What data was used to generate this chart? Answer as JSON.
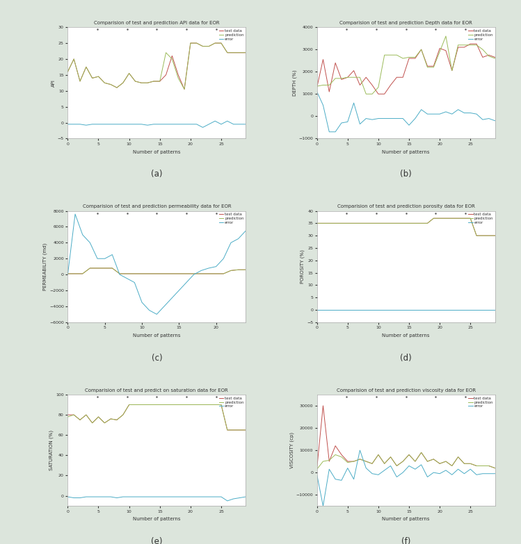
{
  "background_color": "#dce5dc",
  "subplot_bg": "#ffffff",
  "subplot_titles": [
    "Comparision of test and prediction API data for EOR",
    "Comparision of test and prediction Depth data for EOR",
    "Comparision of test and prediction permeability data for EOR",
    "Comparision of test and prediction porosity data for EOR",
    "Comparision of test and predict on saturation data for EOR",
    "Comparision of test and prediction viscosity data for EOR"
  ],
  "subplot_labels": [
    "(a)",
    "(b)",
    "(c)",
    "(d)",
    "(e)",
    "(f)"
  ],
  "ylabels": [
    "API",
    "DEPTH (%)",
    "PERMEABILITY (md)",
    "POROSITY (%)",
    "SATURATION (%)",
    "VISCOSITY (cp)"
  ],
  "xlabel": "Number of patterns",
  "line_colors": {
    "test": "#c0504d",
    "prediction": "#9bbb59",
    "error": "#4bacc6"
  },
  "legend_labels": [
    "test data",
    "prediction",
    "error"
  ],
  "api": {
    "x": [
      0,
      1,
      2,
      3,
      4,
      5,
      6,
      7,
      8,
      9,
      10,
      11,
      12,
      13,
      14,
      15,
      16,
      17,
      18,
      19,
      20,
      21,
      22,
      23,
      24,
      25,
      26,
      27,
      28,
      29
    ],
    "test": [
      16,
      20,
      13,
      17.5,
      14,
      14.5,
      12.5,
      12,
      11,
      12.5,
      15.5,
      13,
      12.5,
      12.5,
      13,
      13,
      15,
      21,
      15,
      10.5,
      25,
      25,
      24,
      24,
      25,
      25,
      22,
      22,
      22,
      22
    ],
    "prediction": [
      16,
      20,
      13,
      17.5,
      14,
      14.5,
      12.5,
      12,
      11,
      12.5,
      15.5,
      13,
      12.5,
      12.5,
      13,
      13,
      22,
      20,
      14,
      10.5,
      25,
      25,
      24,
      24,
      25,
      25,
      22,
      22,
      22,
      22
    ],
    "error": [
      -0.5,
      -0.5,
      -0.5,
      -0.8,
      -0.5,
      -0.5,
      -0.5,
      -0.5,
      -0.5,
      -0.5,
      -0.5,
      -0.5,
      -0.5,
      -0.8,
      -0.5,
      -0.5,
      -0.5,
      -0.5,
      -0.5,
      -0.5,
      -0.5,
      -0.5,
      -1.5,
      -0.5,
      0.5,
      -0.5,
      0.5,
      -0.5,
      -0.5,
      -0.5
    ],
    "ylim": [
      -5,
      30
    ],
    "yticks": [
      -5,
      0,
      5,
      10,
      15,
      20,
      25,
      30
    ]
  },
  "depth": {
    "x": [
      0,
      1,
      2,
      3,
      4,
      5,
      6,
      7,
      8,
      9,
      10,
      11,
      12,
      13,
      14,
      15,
      16,
      17,
      18,
      19,
      20,
      21,
      22,
      23,
      24,
      25,
      26,
      27,
      28,
      29
    ],
    "test": [
      1300,
      2550,
      1100,
      2400,
      1650,
      1750,
      2050,
      1400,
      1750,
      1400,
      1000,
      1000,
      1400,
      1750,
      1750,
      2600,
      2600,
      3000,
      2250,
      2250,
      3050,
      2950,
      2050,
      3100,
      3100,
      3250,
      3250,
      2650,
      2750,
      2650
    ],
    "prediction": [
      1350,
      1400,
      1400,
      1700,
      1700,
      1750,
      1750,
      1750,
      1000,
      1000,
      1300,
      2750,
      2750,
      2750,
      2600,
      2650,
      2650,
      3000,
      2200,
      2200,
      2900,
      3600,
      2050,
      3200,
      3200,
      3200,
      3200,
      3000,
      2700,
      2600
    ],
    "error": [
      1100,
      500,
      -700,
      -700,
      -300,
      -250,
      600,
      -350,
      -100,
      -150,
      -100,
      -100,
      -100,
      -100,
      -100,
      -400,
      -100,
      300,
      100,
      100,
      100,
      200,
      100,
      300,
      150,
      150,
      100,
      -150,
      -100,
      -200
    ],
    "ylim": [
      -1000,
      4000
    ],
    "yticks": [
      -1000,
      -500,
      0,
      500,
      1000,
      1500,
      2000,
      2500,
      3000,
      3500,
      4000
    ]
  },
  "permeability": {
    "x": [
      0,
      1,
      2,
      3,
      4,
      5,
      6,
      7,
      8,
      9,
      10,
      11,
      12,
      13,
      14,
      15,
      16,
      17,
      18,
      19,
      20,
      21,
      22,
      23,
      24
    ],
    "test": [
      100,
      100,
      100,
      800,
      800,
      800,
      800,
      100,
      100,
      100,
      100,
      100,
      100,
      100,
      100,
      100,
      100,
      100,
      100,
      100,
      100,
      100,
      500,
      600,
      600
    ],
    "prediction": [
      100,
      100,
      100,
      800,
      800,
      800,
      800,
      100,
      100,
      100,
      100,
      100,
      100,
      100,
      100,
      100,
      100,
      100,
      100,
      100,
      100,
      100,
      500,
      600,
      600
    ],
    "error": [
      0,
      7600,
      5000,
      4000,
      2000,
      2000,
      2500,
      0,
      -500,
      -1000,
      -3500,
      -4500,
      -5000,
      -4000,
      -3000,
      -2000,
      -1000,
      0,
      500,
      800,
      1000,
      2000,
      4000,
      4500,
      5500
    ],
    "ylim": [
      -6000,
      8000
    ],
    "yticks": [
      -6000,
      -4000,
      -2000,
      0,
      2000,
      4000,
      6000,
      8000
    ]
  },
  "porosity": {
    "x": [
      0,
      1,
      2,
      3,
      4,
      5,
      6,
      7,
      8,
      9,
      10,
      11,
      12,
      13,
      14,
      15,
      16,
      17,
      18,
      19,
      20,
      21,
      22,
      23,
      24,
      25,
      26,
      27,
      28,
      29
    ],
    "test": [
      35,
      35,
      35,
      35,
      35,
      35,
      35,
      35,
      35,
      35,
      35,
      35,
      35,
      35,
      35,
      35,
      35,
      35,
      35,
      37,
      37,
      37,
      37,
      37,
      37,
      37,
      30,
      30,
      30,
      30
    ],
    "prediction": [
      35,
      35,
      35,
      35,
      35,
      35,
      35,
      35,
      35,
      35,
      35,
      35,
      35,
      35,
      35,
      35,
      35,
      35,
      35,
      37,
      37,
      37,
      37,
      37,
      37,
      37,
      30,
      30,
      30,
      30
    ],
    "error": [
      0,
      0,
      0,
      0,
      0,
      0,
      0,
      0,
      0,
      0,
      0,
      0,
      0,
      0,
      0,
      0,
      0,
      0,
      0,
      0,
      0,
      0,
      0,
      0,
      0,
      0,
      0,
      0,
      0,
      0
    ],
    "ylim": [
      -5,
      40
    ],
    "yticks": [
      -5,
      0,
      5,
      10,
      15,
      20,
      25,
      30,
      35,
      40
    ]
  },
  "saturation": {
    "x": [
      0,
      1,
      2,
      3,
      4,
      5,
      6,
      7,
      8,
      9,
      10,
      11,
      12,
      13,
      14,
      15,
      16,
      17,
      18,
      19,
      20,
      21,
      22,
      23,
      24,
      25,
      26,
      27,
      28,
      29
    ],
    "test": [
      80,
      80,
      75,
      80,
      72,
      78,
      72,
      76,
      75,
      80,
      90,
      90,
      90,
      90,
      90,
      90,
      90,
      90,
      90,
      90,
      90,
      90,
      90,
      90,
      90,
      90,
      65,
      65,
      65,
      65
    ],
    "prediction": [
      78,
      80,
      75,
      80,
      72,
      78,
      72,
      76,
      75,
      80,
      90,
      90,
      90,
      90,
      90,
      90,
      90,
      90,
      90,
      90,
      90,
      90,
      90,
      90,
      90,
      90,
      65,
      65,
      65,
      65
    ],
    "error": [
      -1,
      -2,
      -2,
      -1,
      -1,
      -1,
      -1,
      -1,
      -2,
      -1,
      -1,
      -1,
      -1,
      -1,
      -1,
      -1,
      -1,
      -1,
      -1,
      -1,
      -1,
      -1,
      -1,
      -1,
      -1,
      -1,
      -5,
      -3,
      -2,
      -1
    ],
    "ylim": [
      -10,
      100
    ],
    "yticks": [
      -10,
      0,
      10,
      20,
      30,
      40,
      50,
      60,
      70,
      80,
      90,
      100
    ]
  },
  "viscosity": {
    "x": [
      0,
      1,
      2,
      3,
      4,
      5,
      6,
      7,
      8,
      9,
      10,
      11,
      12,
      13,
      14,
      15,
      16,
      17,
      18,
      19,
      20,
      21,
      22,
      23,
      24,
      25,
      26,
      27,
      28,
      29
    ],
    "test": [
      2000,
      30000,
      5000,
      12000,
      8000,
      5000,
      5000,
      6000,
      5000,
      4000,
      8000,
      4000,
      7000,
      3000,
      5000,
      8000,
      5000,
      9000,
      5000,
      6000,
      4000,
      5000,
      3000,
      7000,
      4000,
      4000,
      3000,
      3000,
      3000,
      2000
    ],
    "prediction": [
      1500,
      5000,
      5500,
      8000,
      7000,
      4500,
      5000,
      6000,
      5000,
      4000,
      8000,
      4000,
      7000,
      3000,
      5000,
      8000,
      5000,
      9000,
      5000,
      6000,
      4000,
      5000,
      3000,
      7000,
      4000,
      4000,
      3000,
      3000,
      3000,
      2000
    ],
    "error": [
      -1000,
      -15000,
      1500,
      -3000,
      -3500,
      2000,
      -3000,
      10000,
      2000,
      -500,
      -1000,
      1000,
      3000,
      -2000,
      0,
      3000,
      1500,
      3500,
      -2000,
      0,
      -500,
      1000,
      -1000,
      1500,
      -500,
      1500,
      -1000,
      -500,
      -500,
      -500
    ],
    "ylim": [
      -15000,
      35000
    ],
    "yticks": [
      -15000,
      -10000,
      -5000,
      0,
      5000,
      10000,
      15000,
      20000,
      25000,
      30000,
      35000
    ]
  }
}
